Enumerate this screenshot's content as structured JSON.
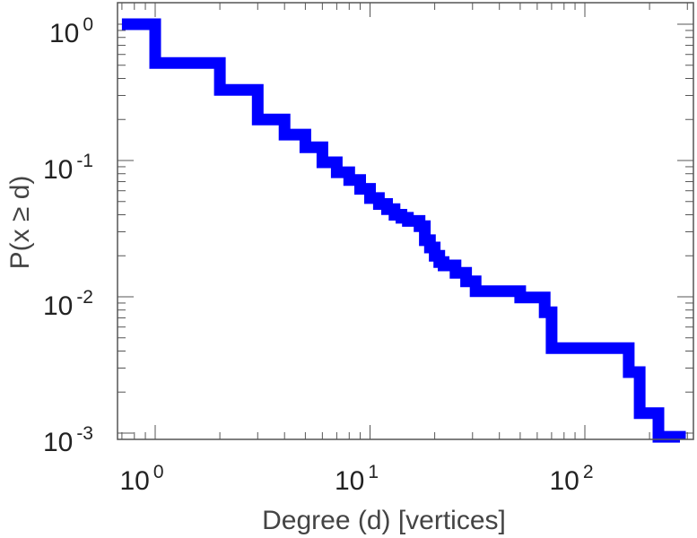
{
  "chart_data": {
    "type": "line",
    "subtype": "step (complementary cumulative distribution)",
    "title": "",
    "xlabel": "Degree (d) [vertices]",
    "ylabel": "P(x ≥ d)",
    "xscale": "log",
    "yscale": "log",
    "xlim": [
      0.7,
      260
    ],
    "ylim": [
      0.00092,
      1.1
    ],
    "grid": false,
    "line_color": "#0000ff",
    "x_ticks": [
      {
        "value": 1,
        "base": "10",
        "exp": "0"
      },
      {
        "value": 10,
        "base": "10",
        "exp": "1"
      },
      {
        "value": 100,
        "base": "10",
        "exp": "2"
      }
    ],
    "y_ticks": [
      {
        "value": 1,
        "base": "10",
        "exp": "0"
      },
      {
        "value": 0.1,
        "base": "10",
        "exp": "-1"
      },
      {
        "value": 0.01,
        "base": "10",
        "exp": "-2"
      },
      {
        "value": 0.001,
        "base": "10",
        "exp": "-3"
      }
    ],
    "series": [
      {
        "x": [
          0.7,
          1,
          2,
          3,
          4,
          5,
          6,
          7,
          8,
          9,
          10,
          11,
          12,
          13,
          14,
          15,
          17,
          18,
          19,
          20,
          21,
          22,
          25,
          28,
          31,
          50,
          65,
          70,
          160,
          180,
          220
        ],
        "y": [
          1.0,
          0.52,
          0.33,
          0.2,
          0.155,
          0.125,
          0.097,
          0.082,
          0.072,
          0.062,
          0.053,
          0.048,
          0.044,
          0.04,
          0.038,
          0.036,
          0.033,
          0.026,
          0.023,
          0.02,
          0.018,
          0.017,
          0.015,
          0.013,
          0.011,
          0.0099,
          0.0077,
          0.0042,
          0.0028,
          0.0014,
          0.00094
        ]
      }
    ]
  }
}
